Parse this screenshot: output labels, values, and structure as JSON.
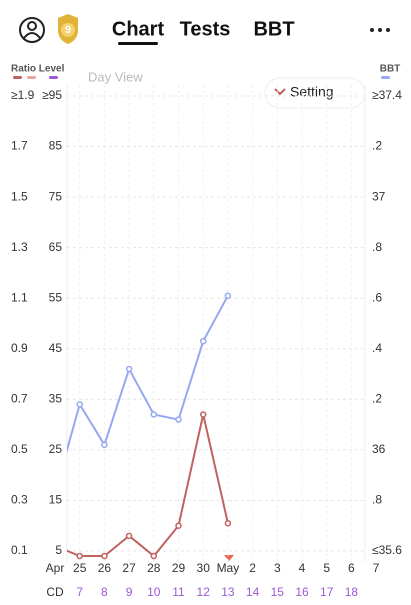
{
  "header": {
    "badge": "9",
    "tabs": [
      "Chart",
      "Tests",
      "BBT"
    ]
  },
  "legend": {
    "left": "Ratio Level",
    "right": "BBT"
  },
  "view_label": "Day View",
  "setting_button": "Setting",
  "chart_data": {
    "type": "line",
    "categories": [
      "Apr",
      "25",
      "26",
      "27",
      "28",
      "29",
      "30",
      "May",
      "2",
      "3",
      "4",
      "5",
      "6",
      "7"
    ],
    "cd_label": "CD",
    "cycle_days": [
      null,
      7,
      8,
      9,
      10,
      11,
      12,
      13,
      14,
      15,
      16,
      17,
      18,
      null
    ],
    "ylim": [
      0.1,
      1.9
    ],
    "yticks": [
      {
        "value": 1.9,
        "label": "≥1.9"
      },
      1.7,
      1.5,
      1.3,
      1.1,
      0.9,
      0.7,
      0.5,
      0.3,
      0.1
    ],
    "level_lim": [
      5,
      95
    ],
    "level_ticks": [
      {
        "value": 95,
        "label": "≥95"
      },
      85,
      75,
      65,
      55,
      45,
      35,
      25,
      15,
      5
    ],
    "y2lim": [
      35.6,
      37.4
    ],
    "y2ticks": [
      {
        "value": 37.4,
        "label": "≥37.4"
      },
      {
        "value": 37.2,
        "label": ".2"
      },
      37,
      {
        "value": 36.8,
        "label": ".8"
      },
      {
        "value": 36.6,
        "label": ".6"
      },
      {
        "value": 36.4,
        "label": ".4"
      },
      {
        "value": 36.2,
        "label": ".2"
      },
      36,
      {
        "value": 35.8,
        "label": ".8"
      },
      {
        "value": 35.6,
        "label": "≤35.6"
      }
    ],
    "grid": true,
    "series": [
      {
        "color": "#c0625f",
        "values": [
          0.12,
          0.08,
          0.08,
          0.16,
          0.08,
          0.2,
          0.64,
          0.21,
          null,
          null,
          null,
          null,
          null,
          null
        ]
      },
      {
        "color": "#94a9ef",
        "axis": "y2",
        "values": [
          35.83,
          36.18,
          36.02,
          36.32,
          36.14,
          36.12,
          36.43,
          36.61,
          null,
          null,
          null,
          null,
          null,
          null
        ]
      }
    ]
  }
}
